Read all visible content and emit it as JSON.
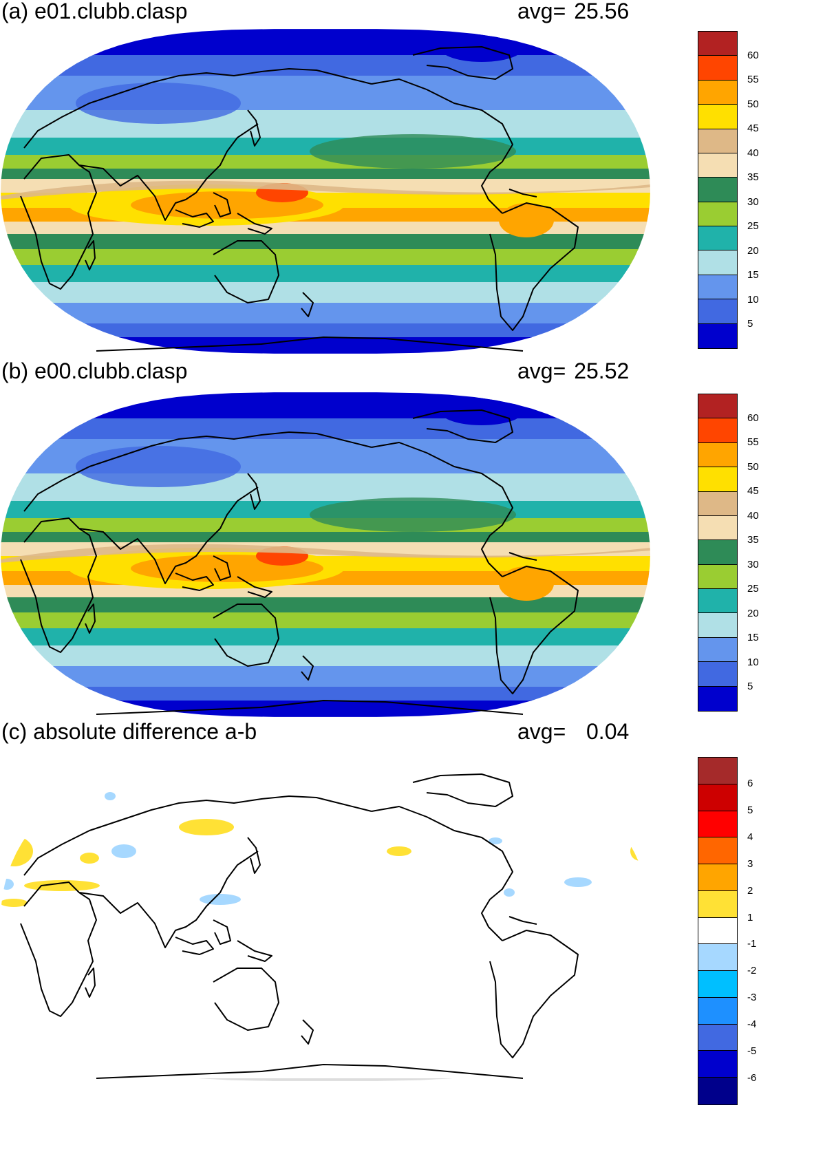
{
  "panels": [
    {
      "id": "a",
      "title": "(a) e01.clubb.clasp",
      "avg_label": "avg=",
      "avg_value": "25.56",
      "field": "full"
    },
    {
      "id": "b",
      "title": "(b) e00.clubb.clasp",
      "avg_label": "avg=",
      "avg_value": "25.52",
      "field": "full"
    },
    {
      "id": "c",
      "title": "(c) absolute difference a-b",
      "avg_label": "avg=",
      "avg_value": "0.04",
      "field": "difference"
    }
  ],
  "colorbar_full": {
    "labels": [
      "60",
      "55",
      "50",
      "45",
      "40",
      "35",
      "30",
      "25",
      "20",
      "15",
      "10",
      "5"
    ],
    "colors": [
      "#b22222",
      "#ff4500",
      "#ffa500",
      "#ffe000",
      "#deb887",
      "#f5deb3",
      "#2e8b57",
      "#9acd32",
      "#20b2aa",
      "#b0e0e6",
      "#6495ed",
      "#4169e1",
      "#0000cd"
    ]
  },
  "colorbar_diff": {
    "labels": [
      "6",
      "5",
      "4",
      "3",
      "2",
      "1",
      "-1",
      "-2",
      "-3",
      "-4",
      "-5",
      "-6"
    ],
    "colors": [
      "#a52a2a",
      "#cd0000",
      "#ff0000",
      "#ff6600",
      "#ffa500",
      "#ffe135",
      "#ffffff",
      "#a6d8ff",
      "#00bfff",
      "#1e90ff",
      "#4169e1",
      "#0000cd",
      "#00008b"
    ]
  }
}
